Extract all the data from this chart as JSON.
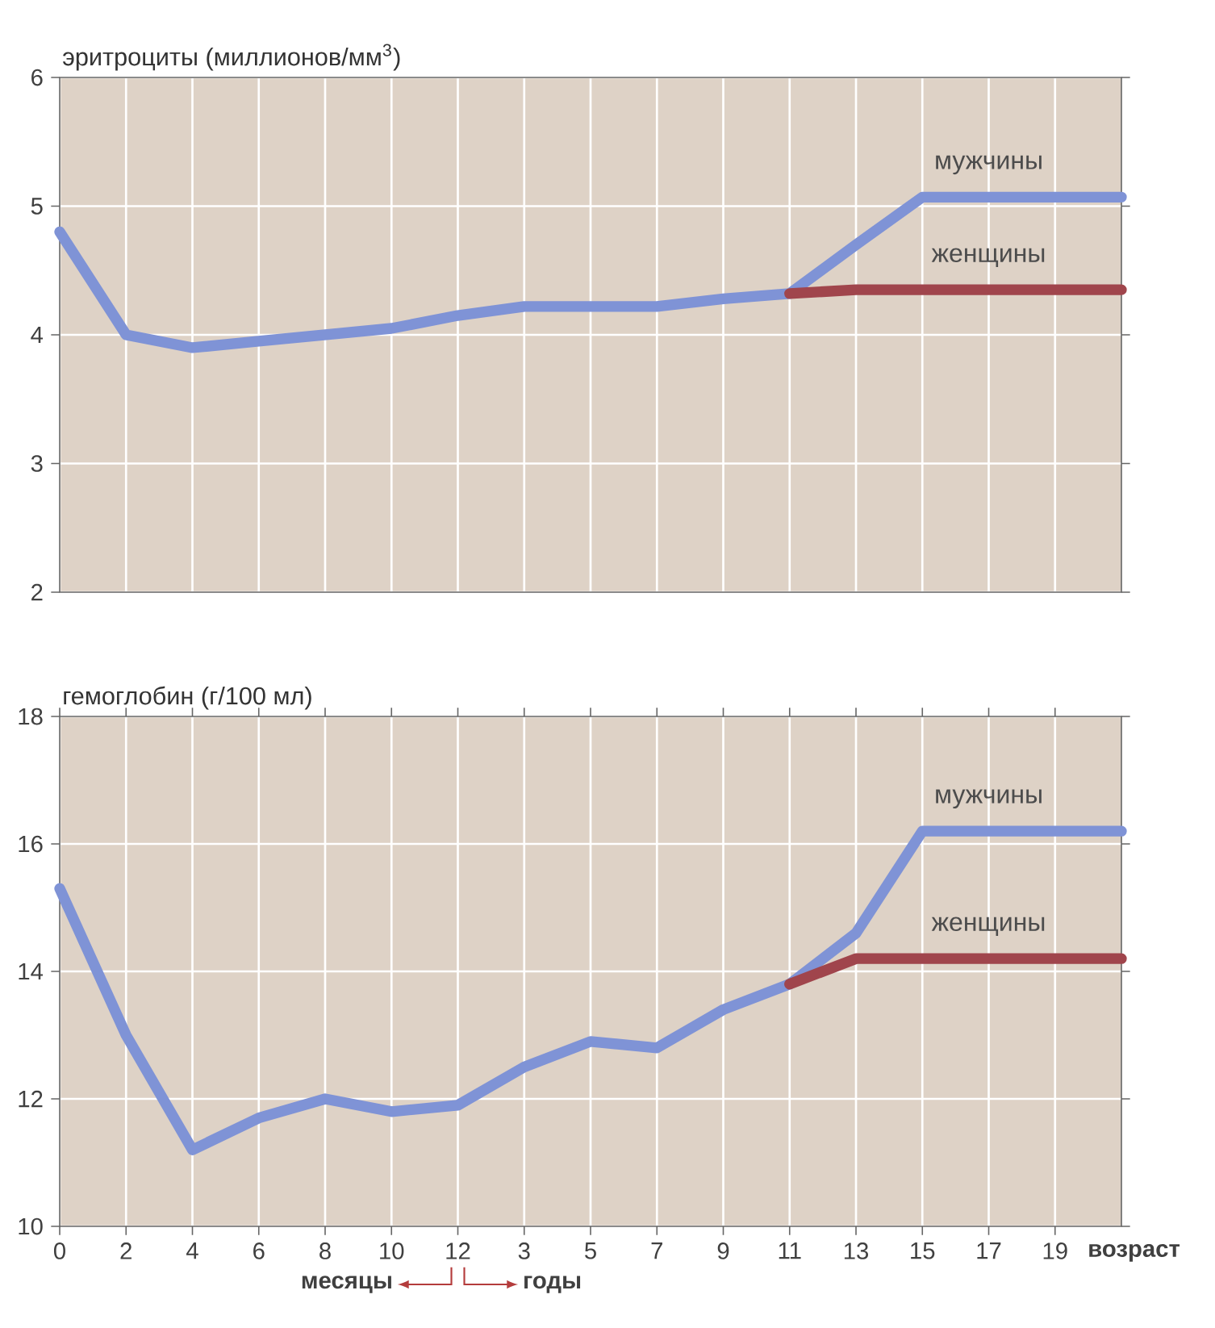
{
  "chart_data": [
    {
      "type": "line",
      "ylabel": "эритроциты (миллионов/мм$^{3}$)",
      "categories": [
        "0",
        "2",
        "4",
        "6",
        "8",
        "10",
        "12",
        "3",
        "5",
        "7",
        "9",
        "11",
        "13",
        "15",
        "17",
        "19",
        null
      ],
      "series": [
        {
          "name": "мужчины",
          "color": "#7f93d6",
          "values": [
            4.8,
            4.0,
            3.9,
            3.95,
            4.0,
            4.05,
            4.15,
            4.22,
            4.22,
            4.22,
            4.28,
            4.32,
            4.7,
            5.07,
            5.07,
            5.07,
            5.07
          ]
        },
        {
          "name": "женщины",
          "color": "#a0454c",
          "values": [
            null,
            null,
            null,
            null,
            null,
            null,
            null,
            null,
            null,
            null,
            null,
            4.32,
            4.35,
            4.35,
            4.35,
            4.35,
            4.35
          ]
        }
      ],
      "ylim": [
        2,
        6
      ],
      "yticks": [
        2,
        3,
        4,
        5,
        6
      ],
      "grid": true,
      "marker": "none",
      "tick_labels": "y"
    },
    {
      "type": "line",
      "ylabel": "гемоглобин (г/100 мл)",
      "xlabel": "возраст",
      "categories": [
        "0",
        "2",
        "4",
        "6",
        "8",
        "10",
        "12",
        "3",
        "5",
        "7",
        "9",
        "11",
        "13",
        "15",
        "17",
        "19",
        null
      ],
      "series": [
        {
          "name": "мужчины",
          "color": "#7f93d6",
          "values": [
            15.3,
            13.0,
            11.2,
            11.7,
            12.0,
            11.8,
            11.9,
            12.5,
            12.9,
            12.8,
            13.4,
            13.8,
            14.6,
            16.2,
            16.2,
            16.2,
            16.2
          ]
        },
        {
          "name": "женщины",
          "color": "#a0454c",
          "values": [
            null,
            null,
            null,
            null,
            null,
            null,
            null,
            null,
            null,
            null,
            null,
            13.8,
            14.2,
            14.2,
            14.2,
            14.2,
            14.2
          ]
        }
      ],
      "ylim": [
        10,
        18
      ],
      "yticks": [
        10,
        12,
        14,
        16,
        18
      ],
      "grid": true,
      "marker": "none",
      "annotations": [
        "месяцы",
        "годы"
      ]
    }
  ]
}
